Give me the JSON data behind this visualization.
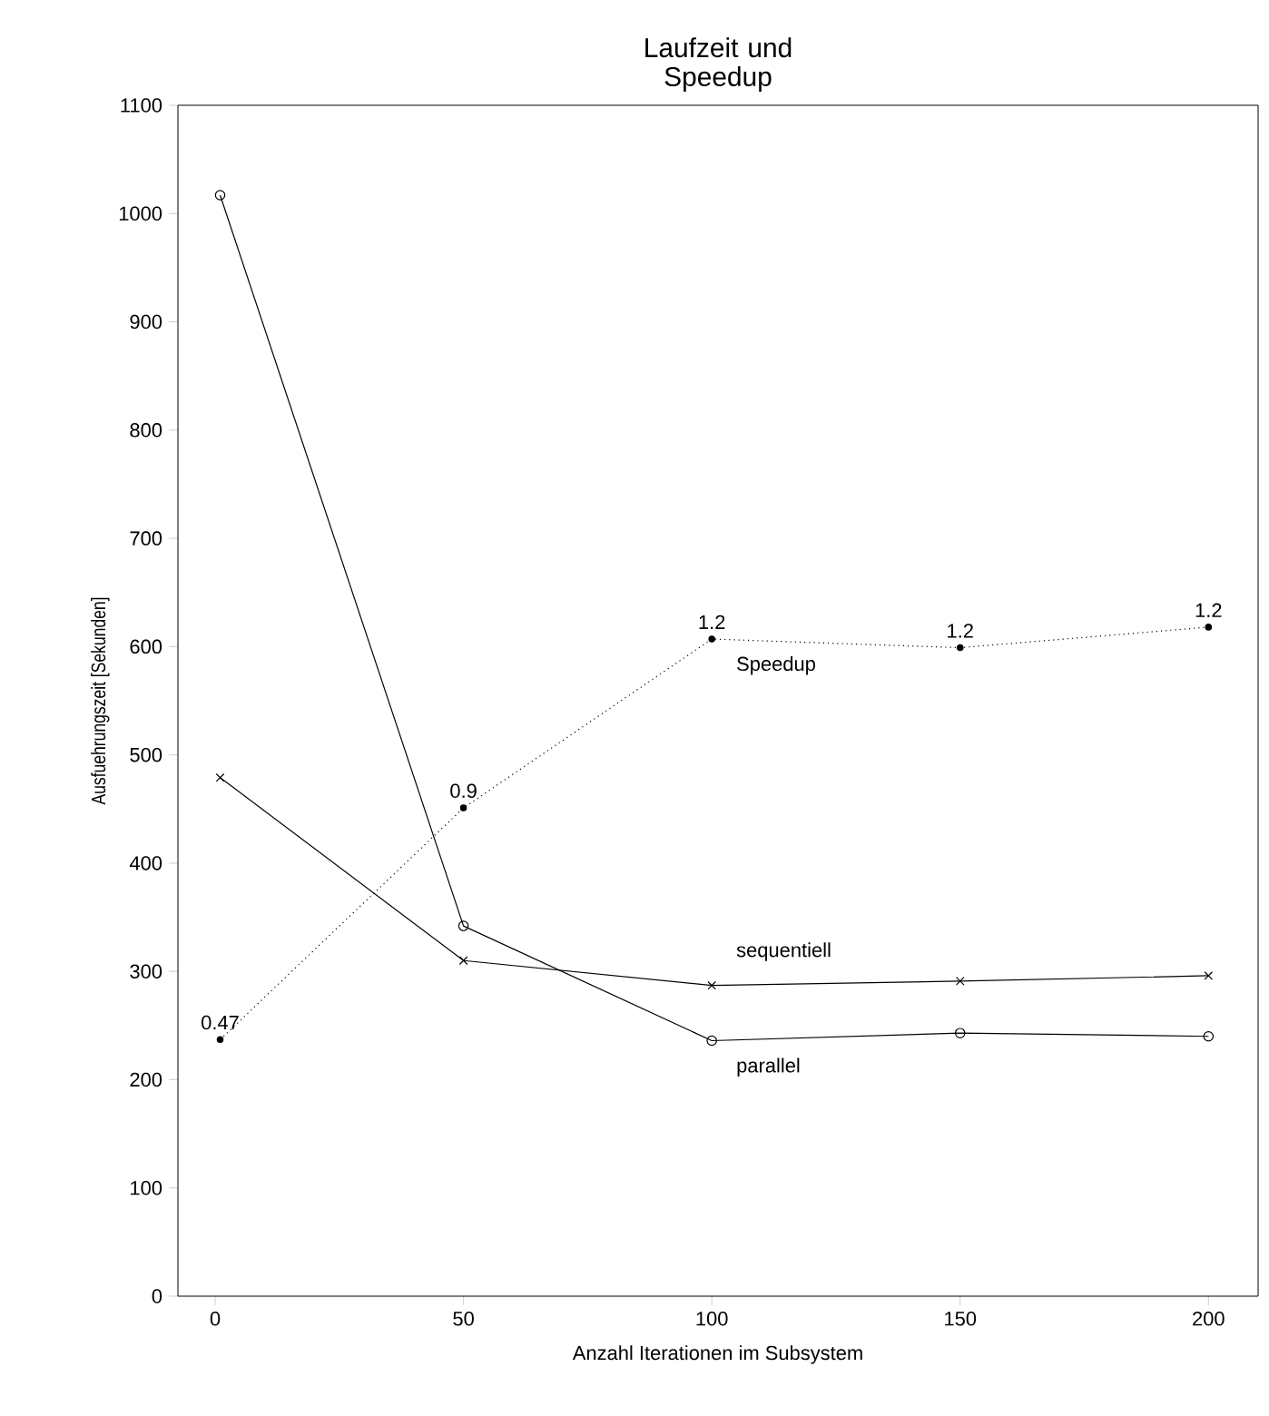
{
  "chart_data": {
    "type": "line",
    "title": "Laufzeit und Speedup",
    "xlabel": "Anzahl Iterationen im Subsystem",
    "ylabel": "Ausfuehrungszeit [Sekunden]",
    "xlim": [
      -7.5,
      210
    ],
    "xticks": [
      0,
      50,
      100,
      150,
      200
    ],
    "ylim": [
      0,
      1100
    ],
    "yticks": [
      0,
      100,
      200,
      300,
      400,
      500,
      600,
      700,
      800,
      900,
      1000,
      1100
    ],
    "grid": false,
    "legend": false,
    "annotations": [
      {
        "text": "0.47",
        "x": 1,
        "y": 237
      },
      {
        "text": "0.9",
        "x": 50,
        "y": 451
      },
      {
        "text": "1.2",
        "x": 100,
        "y": 607
      },
      {
        "text": "1.2",
        "x": 150,
        "y": 599
      },
      {
        "text": "1.2",
        "x": 200,
        "y": 618
      }
    ],
    "series": [
      {
        "name": "Speedup",
        "color": "#000000",
        "x": [
          1,
          50,
          100,
          150,
          200
        ],
        "values": [
          237,
          451,
          607,
          599,
          618
        ],
        "marker": "circle",
        "line_style": "dotted"
      },
      {
        "name": "sequentiell",
        "color": "#000000",
        "x": [
          1,
          50,
          100,
          150,
          200
        ],
        "values": [
          479,
          310,
          287,
          291,
          296
        ],
        "marker": "cross",
        "line_style": "solid"
      },
      {
        "name": "parallel",
        "color": "#000000",
        "x": [
          1,
          50,
          100,
          150,
          200
        ],
        "values": [
          1017,
          342,
          236,
          243,
          240
        ],
        "marker": "circle_open",
        "line_style": "solid"
      }
    ]
  }
}
